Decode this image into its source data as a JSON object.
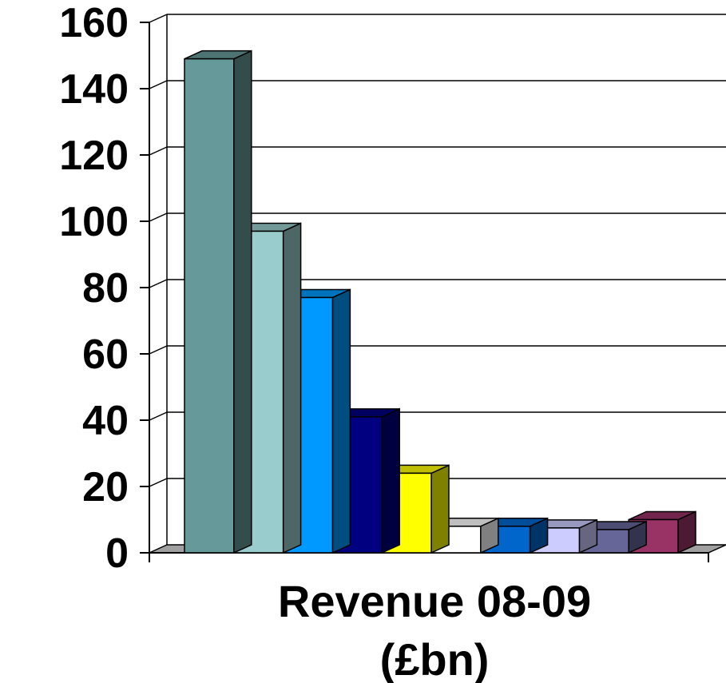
{
  "chart_data": {
    "type": "bar",
    "style": "3d-clustered-column",
    "xlabel_lines": [
      "Revenue 08-09",
      "(£bn)"
    ],
    "ylim": [
      0,
      160
    ],
    "yticks": [
      "0",
      "20",
      "40",
      "60",
      "80",
      "100",
      "120",
      "140",
      "160"
    ],
    "grid": true,
    "legend": "none",
    "series": [
      {
        "values": [
          149
        ],
        "color": "#669999"
      },
      {
        "values": [
          97
        ],
        "color": "#99CCCC"
      },
      {
        "values": [
          77
        ],
        "color": "#0099FF"
      },
      {
        "values": [
          41
        ],
        "color": "#000080"
      },
      {
        "values": [
          24
        ],
        "color": "#FFFF00"
      },
      {
        "values": [
          8
        ],
        "color": "#FFFFFF"
      },
      {
        "values": [
          8
        ],
        "color": "#0066CC"
      },
      {
        "values": [
          7.5
        ],
        "color": "#CCCCFF"
      },
      {
        "values": [
          7
        ],
        "color": "#666699"
      },
      {
        "values": [
          10
        ],
        "color": "#993366"
      }
    ]
  }
}
